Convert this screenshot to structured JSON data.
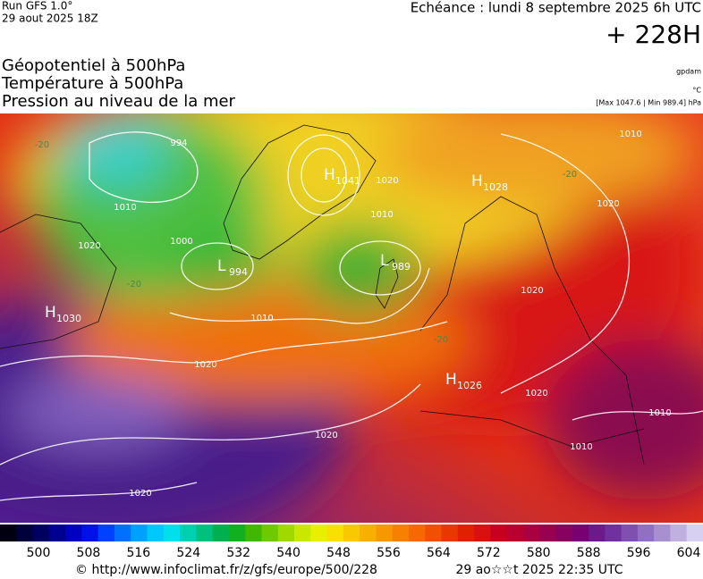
{
  "header": {
    "run": "Run GFS 1.0°",
    "date": "29 aout 2025 18Z",
    "echeance": "Echéance : lundi 8 septembre 2025 6h UTC",
    "lead": "+ 228H"
  },
  "fields": [
    "Géopotentiel à 500hPa",
    "Température à 500hPa",
    "Pression au niveau de la mer"
  ],
  "units": [
    "gpdam",
    "°C",
    "[Max 1047.6 | Min 989.4] hPa"
  ],
  "centers": [
    {
      "letter": "H",
      "value": "1030"
    },
    {
      "letter": "L",
      "value": "994"
    },
    {
      "letter": "H",
      "value": "1041"
    },
    {
      "letter": "L",
      "value": "989"
    },
    {
      "letter": "H",
      "value": "1028"
    },
    {
      "letter": "H",
      "value": "1026"
    }
  ],
  "isobar_labels": [
    "994",
    "1020",
    "1010",
    "1000",
    "1020",
    "1020",
    "1020",
    "1010",
    "1020",
    "1010",
    "1020",
    "1010",
    "1020",
    "1020",
    "1010",
    "1010"
  ],
  "temperature_labels": [
    "-20",
    "-20",
    "-20",
    "-20"
  ],
  "colorbar": {
    "ticks": [
      500,
      508,
      516,
      524,
      532,
      540,
      548,
      556,
      564,
      572,
      580,
      588,
      596,
      604
    ]
  },
  "footer": {
    "url": "© http://www.infoclimat.fr/z/gfs/europe/500/228",
    "timestamp": "29 ao☆☆t 2025 22:35 UTC"
  }
}
